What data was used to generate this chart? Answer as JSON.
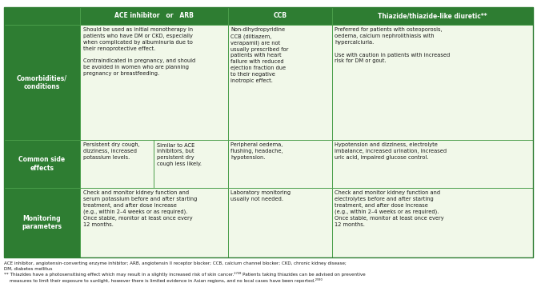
{
  "header_bg": "#2e7d32",
  "header_text_color": "#ffffff",
  "row_label_bg": "#2e7d32",
  "row_label_text_color": "#ffffff",
  "cell_bg": "#f1f8e9",
  "border_color": "#4a9e4a",
  "text_color": "#1a1a1a",
  "fig_bg": "#ffffff",
  "col_headers": [
    "ACE inhibitor   or   ARB",
    "CCB",
    "Thiazide/thiazide-like diuretic**"
  ],
  "row_labels": [
    "Comorbidities/\nconditions",
    "Common side\neffects",
    "Monitoring\nparameters"
  ],
  "row0_col0": "Should be used as initial monotherapy in\npatients who have DM or CKD, especially\nwhen complicated by albuminuria due to\ntheir renoprotective effect.\n\nContraindicated in pregnancy, and should\nbe avoided in women who are planning\npregnancy or breastfeeding.",
  "row0_col1": "Non-dihydropyridine\nCCB (diltiazem,\nverapamil) are not\nusually prescribed for\npatients with heart\nfailure with reduced\nejection fraction due\nto their negative\ninotropic effect.",
  "row0_col2": "Preferred for patients with osteoporosis,\noedema, calcium nephrolithiasis with\nhypercalciuria.\n\nUse with caution in patients with increased\nrisk for DM or gout.",
  "row1_col0a": "Persistent dry cough,\ndizziness, increased\npotassium levels.",
  "row1_col0b": "Similar to ACE\ninhibitors, but\npersistent dry\ncough less likely.",
  "row1_col1": "Peripheral oedema,\nflushing, headache,\nhypotension.",
  "row1_col2": "Hypotension and dizziness, electrolyte\nimbalance, increased urination, increased\nuric acid, impaired glucose control.",
  "row2_col0": "Check and monitor kidney function and\nserum potassium before and after starting\ntreatment, and after dose increase\n(e.g., within 2–4 weeks or as required).\nOnce stable, monitor at least once every\n12 months.",
  "row2_col1": "Laboratory monitoring\nusually not needed.",
  "row2_col2": "Check and monitor kidney function and\nelectrolytes before and after starting\ntreatment, and after dose increase\n(e.g., within 2–4 weeks or as required).\nOnce stable, monitor at least once every\n12 months.",
  "footnote1": "ACE inhibitor, angiotensin-converting enzyme inhibitor; ARB, angiotensin II receptor blocker; CCB, calcium channel blocker; CKD, chronic kidney disease;\nDM, diabetes mellitus",
  "footnote2": "** Thiazides have a photosensitising effect which may result in a slightly increased risk of skin cancer.²⁷²⁸ Patients taking thiazides can be advised on preventive\n    measures to limit their exposure to sunlight, however there is limited evidence in Asian regions, and no local cases have been reported.²⁹³⁰"
}
